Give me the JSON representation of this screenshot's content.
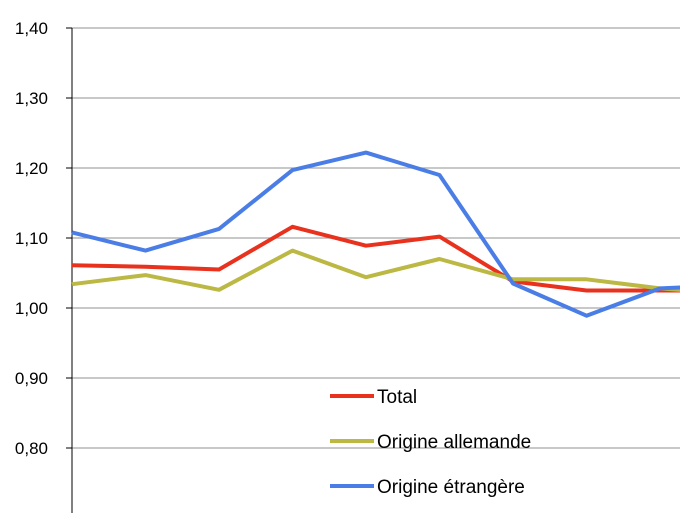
{
  "chart_data": {
    "type": "line",
    "title": "",
    "xlabel": "",
    "ylabel": "",
    "ylim": [
      0.75,
      1.4
    ],
    "y_ticks": [
      "0,80",
      "0,90",
      "1,00",
      "1,10",
      "1,20",
      "1,30",
      "1,40"
    ],
    "y_tick_values": [
      0.8,
      0.9,
      1.0,
      1.1,
      1.2,
      1.3,
      1.4
    ],
    "grid": true,
    "legend_position": "bottom-center",
    "x": [
      1,
      2,
      3,
      4,
      5,
      6,
      7,
      8,
      9,
      10
    ],
    "series": [
      {
        "name": "Total",
        "color": "#e8321e",
        "values": [
          1.061,
          1.059,
          1.055,
          1.116,
          1.089,
          1.102,
          1.038,
          1.025,
          1.025,
          1.025
        ]
      },
      {
        "name": "Origine allemande",
        "color": "#bbb844",
        "values": [
          1.034,
          1.047,
          1.026,
          1.082,
          1.044,
          1.07,
          1.041,
          1.041,
          1.028,
          1.02
        ]
      },
      {
        "name": "Origine étrangère",
        "color": "#4a7ee6",
        "values": [
          1.108,
          1.082,
          1.113,
          1.197,
          1.222,
          1.19,
          1.035,
          0.989,
          1.028,
          1.033
        ]
      }
    ]
  }
}
